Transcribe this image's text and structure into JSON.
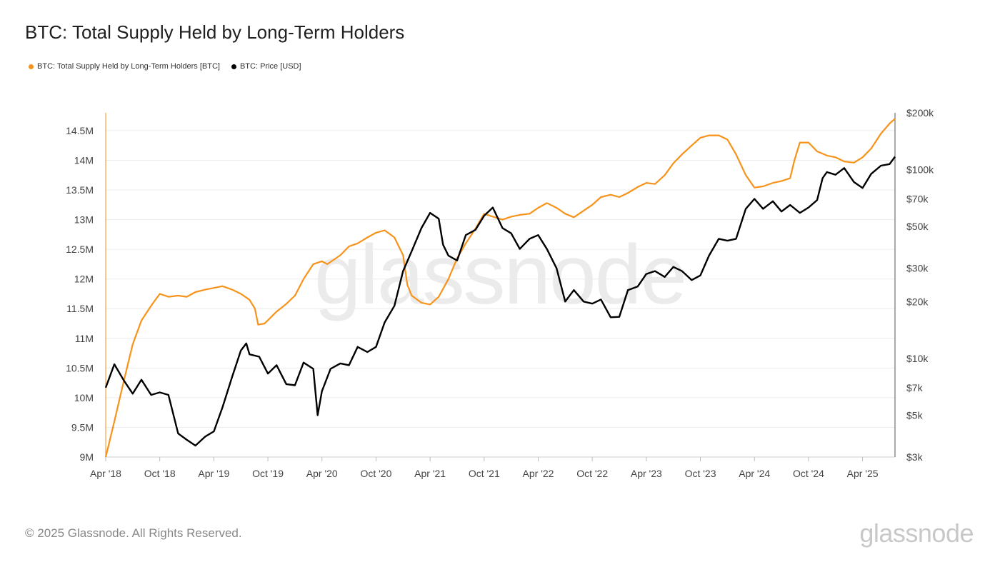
{
  "title": "BTC: Total Supply Held by Long-Term Holders",
  "footer": "© 2025 Glassnode. All Rights Reserved.",
  "brand": "glassnode",
  "colors": {
    "lth": "#f7931a",
    "price": "#000000",
    "grid": "#ececec"
  },
  "chart_data": {
    "type": "line",
    "title": "BTC: Total Supply Held by Long-Term Holders",
    "watermark": "glassnode",
    "x_axis": {
      "start": "2018-04",
      "end": "2025-06-25",
      "ticks": [
        {
          "label": "Apr '18",
          "t": 2018.25
        },
        {
          "label": "Oct '18",
          "t": 2018.75
        },
        {
          "label": "Apr '19",
          "t": 2019.25
        },
        {
          "label": "Oct '19",
          "t": 2019.75
        },
        {
          "label": "Apr '20",
          "t": 2020.25
        },
        {
          "label": "Oct '20",
          "t": 2020.75
        },
        {
          "label": "Apr '21",
          "t": 2021.25
        },
        {
          "label": "Oct '21",
          "t": 2021.75
        },
        {
          "label": "Apr '22",
          "t": 2022.25
        },
        {
          "label": "Oct '22",
          "t": 2022.75
        },
        {
          "label": "Apr '23",
          "t": 2023.25
        },
        {
          "label": "Oct '23",
          "t": 2023.75
        },
        {
          "label": "Apr '24",
          "t": 2024.25
        },
        {
          "label": "Oct '24",
          "t": 2024.75
        },
        {
          "label": "Apr '25",
          "t": 2025.25
        }
      ]
    },
    "y_left": {
      "label": "BTC",
      "range": [
        9000000,
        14800000
      ],
      "ticks": [
        {
          "label": "9M",
          "v": 9000000
        },
        {
          "label": "9.5M",
          "v": 9500000
        },
        {
          "label": "10M",
          "v": 10000000
        },
        {
          "label": "10.5M",
          "v": 10500000
        },
        {
          "label": "11M",
          "v": 11000000
        },
        {
          "label": "11.5M",
          "v": 11500000
        },
        {
          "label": "12M",
          "v": 12000000
        },
        {
          "label": "12.5M",
          "v": 12500000
        },
        {
          "label": "13M",
          "v": 13000000
        },
        {
          "label": "13.5M",
          "v": 13500000
        },
        {
          "label": "14M",
          "v": 14000000
        },
        {
          "label": "14.5M",
          "v": 14500000
        }
      ]
    },
    "y_right": {
      "label": "USD",
      "scale": "log",
      "range": [
        3000,
        200000
      ],
      "ticks": [
        {
          "label": "$3k",
          "v": 3000
        },
        {
          "label": "$5k",
          "v": 5000
        },
        {
          "label": "$7k",
          "v": 7000
        },
        {
          "label": "$10k",
          "v": 10000
        },
        {
          "label": "$20k",
          "v": 20000
        },
        {
          "label": "$30k",
          "v": 30000
        },
        {
          "label": "$50k",
          "v": 50000
        },
        {
          "label": "$70k",
          "v": 70000
        },
        {
          "label": "$100k",
          "v": 100000
        },
        {
          "label": "$200k",
          "v": 200000
        }
      ]
    },
    "series": [
      {
        "name": "BTC: Total Supply Held by Long-Term Holders [BTC]",
        "axis": "left",
        "color": "#f7931a",
        "points": [
          [
            2018.25,
            9000000
          ],
          [
            2018.33,
            9600000
          ],
          [
            2018.42,
            10300000
          ],
          [
            2018.5,
            10900000
          ],
          [
            2018.58,
            11300000
          ],
          [
            2018.67,
            11550000
          ],
          [
            2018.75,
            11750000
          ],
          [
            2018.83,
            11700000
          ],
          [
            2018.92,
            11720000
          ],
          [
            2019.0,
            11700000
          ],
          [
            2019.08,
            11780000
          ],
          [
            2019.17,
            11820000
          ],
          [
            2019.25,
            11850000
          ],
          [
            2019.33,
            11880000
          ],
          [
            2019.42,
            11820000
          ],
          [
            2019.5,
            11750000
          ],
          [
            2019.58,
            11650000
          ],
          [
            2019.63,
            11500000
          ],
          [
            2019.66,
            11230000
          ],
          [
            2019.72,
            11250000
          ],
          [
            2019.83,
            11450000
          ],
          [
            2019.92,
            11580000
          ],
          [
            2020.0,
            11720000
          ],
          [
            2020.08,
            12000000
          ],
          [
            2020.17,
            12250000
          ],
          [
            2020.25,
            12300000
          ],
          [
            2020.3,
            12250000
          ],
          [
            2020.42,
            12400000
          ],
          [
            2020.5,
            12550000
          ],
          [
            2020.58,
            12600000
          ],
          [
            2020.67,
            12700000
          ],
          [
            2020.75,
            12780000
          ],
          [
            2020.83,
            12820000
          ],
          [
            2020.92,
            12700000
          ],
          [
            2021.0,
            12400000
          ],
          [
            2021.04,
            11900000
          ],
          [
            2021.08,
            11720000
          ],
          [
            2021.17,
            11600000
          ],
          [
            2021.25,
            11570000
          ],
          [
            2021.33,
            11700000
          ],
          [
            2021.42,
            12000000
          ],
          [
            2021.5,
            12350000
          ],
          [
            2021.58,
            12600000
          ],
          [
            2021.67,
            12850000
          ],
          [
            2021.75,
            13100000
          ],
          [
            2021.83,
            13050000
          ],
          [
            2021.92,
            13000000
          ],
          [
            2022.0,
            13050000
          ],
          [
            2022.08,
            13080000
          ],
          [
            2022.17,
            13100000
          ],
          [
            2022.25,
            13200000
          ],
          [
            2022.33,
            13280000
          ],
          [
            2022.42,
            13200000
          ],
          [
            2022.5,
            13100000
          ],
          [
            2022.58,
            13040000
          ],
          [
            2022.67,
            13150000
          ],
          [
            2022.75,
            13250000
          ],
          [
            2022.83,
            13380000
          ],
          [
            2022.92,
            13420000
          ],
          [
            2023.0,
            13380000
          ],
          [
            2023.08,
            13450000
          ],
          [
            2023.17,
            13550000
          ],
          [
            2023.25,
            13620000
          ],
          [
            2023.33,
            13600000
          ],
          [
            2023.42,
            13750000
          ],
          [
            2023.5,
            13950000
          ],
          [
            2023.58,
            14100000
          ],
          [
            2023.67,
            14250000
          ],
          [
            2023.75,
            14380000
          ],
          [
            2023.83,
            14420000
          ],
          [
            2023.92,
            14420000
          ],
          [
            2024.0,
            14350000
          ],
          [
            2024.08,
            14100000
          ],
          [
            2024.17,
            13750000
          ],
          [
            2024.25,
            13540000
          ],
          [
            2024.33,
            13560000
          ],
          [
            2024.42,
            13620000
          ],
          [
            2024.5,
            13650000
          ],
          [
            2024.58,
            13700000
          ],
          [
            2024.62,
            14000000
          ],
          [
            2024.67,
            14300000
          ],
          [
            2024.75,
            14300000
          ],
          [
            2024.83,
            14150000
          ],
          [
            2024.92,
            14080000
          ],
          [
            2025.0,
            14050000
          ],
          [
            2025.08,
            13980000
          ],
          [
            2025.17,
            13960000
          ],
          [
            2025.25,
            14050000
          ],
          [
            2025.33,
            14200000
          ],
          [
            2025.42,
            14450000
          ],
          [
            2025.5,
            14620000
          ],
          [
            2025.55,
            14700000
          ]
        ]
      },
      {
        "name": "BTC: Price [USD]",
        "axis": "right",
        "color": "#000000",
        "points": [
          [
            2018.25,
            7000
          ],
          [
            2018.33,
            9300
          ],
          [
            2018.42,
            7600
          ],
          [
            2018.5,
            6500
          ],
          [
            2018.58,
            7700
          ],
          [
            2018.67,
            6400
          ],
          [
            2018.75,
            6600
          ],
          [
            2018.83,
            6400
          ],
          [
            2018.92,
            4000
          ],
          [
            2019.0,
            3700
          ],
          [
            2019.08,
            3450
          ],
          [
            2019.17,
            3850
          ],
          [
            2019.25,
            4100
          ],
          [
            2019.33,
            5500
          ],
          [
            2019.42,
            8000
          ],
          [
            2019.5,
            11000
          ],
          [
            2019.55,
            12000
          ],
          [
            2019.58,
            10500
          ],
          [
            2019.67,
            10200
          ],
          [
            2019.75,
            8300
          ],
          [
            2019.83,
            9200
          ],
          [
            2019.92,
            7300
          ],
          [
            2020.0,
            7200
          ],
          [
            2020.08,
            9500
          ],
          [
            2020.17,
            8800
          ],
          [
            2020.21,
            5000
          ],
          [
            2020.25,
            6700
          ],
          [
            2020.33,
            8800
          ],
          [
            2020.42,
            9400
          ],
          [
            2020.5,
            9200
          ],
          [
            2020.58,
            11500
          ],
          [
            2020.67,
            10800
          ],
          [
            2020.75,
            11500
          ],
          [
            2020.83,
            15500
          ],
          [
            2020.92,
            19000
          ],
          [
            2021.0,
            29000
          ],
          [
            2021.08,
            37000
          ],
          [
            2021.17,
            49000
          ],
          [
            2021.25,
            59000
          ],
          [
            2021.33,
            55000
          ],
          [
            2021.37,
            40000
          ],
          [
            2021.42,
            35000
          ],
          [
            2021.5,
            33000
          ],
          [
            2021.58,
            45000
          ],
          [
            2021.67,
            48000
          ],
          [
            2021.75,
            57000
          ],
          [
            2021.83,
            63000
          ],
          [
            2021.92,
            49000
          ],
          [
            2022.0,
            46000
          ],
          [
            2022.08,
            38000
          ],
          [
            2022.17,
            43000
          ],
          [
            2022.25,
            45000
          ],
          [
            2022.33,
            38000
          ],
          [
            2022.42,
            30000
          ],
          [
            2022.5,
            20000
          ],
          [
            2022.58,
            23000
          ],
          [
            2022.67,
            20000
          ],
          [
            2022.75,
            19500
          ],
          [
            2022.83,
            20500
          ],
          [
            2022.92,
            16500
          ],
          [
            2023.0,
            16600
          ],
          [
            2023.08,
            23000
          ],
          [
            2023.17,
            24000
          ],
          [
            2023.25,
            28000
          ],
          [
            2023.33,
            29000
          ],
          [
            2023.42,
            27000
          ],
          [
            2023.5,
            30500
          ],
          [
            2023.58,
            29000
          ],
          [
            2023.67,
            26000
          ],
          [
            2023.75,
            27500
          ],
          [
            2023.83,
            35000
          ],
          [
            2023.92,
            43000
          ],
          [
            2024.0,
            42000
          ],
          [
            2024.08,
            43000
          ],
          [
            2024.17,
            62000
          ],
          [
            2024.25,
            70000
          ],
          [
            2024.33,
            62000
          ],
          [
            2024.42,
            68000
          ],
          [
            2024.5,
            60000
          ],
          [
            2024.58,
            65000
          ],
          [
            2024.67,
            59000
          ],
          [
            2024.75,
            63000
          ],
          [
            2024.83,
            69000
          ],
          [
            2024.88,
            90000
          ],
          [
            2024.92,
            97000
          ],
          [
            2025.0,
            94000
          ],
          [
            2025.08,
            102000
          ],
          [
            2025.17,
            86000
          ],
          [
            2025.25,
            80000
          ],
          [
            2025.33,
            95000
          ],
          [
            2025.42,
            105000
          ],
          [
            2025.5,
            107000
          ],
          [
            2025.55,
            117000
          ]
        ]
      }
    ]
  }
}
